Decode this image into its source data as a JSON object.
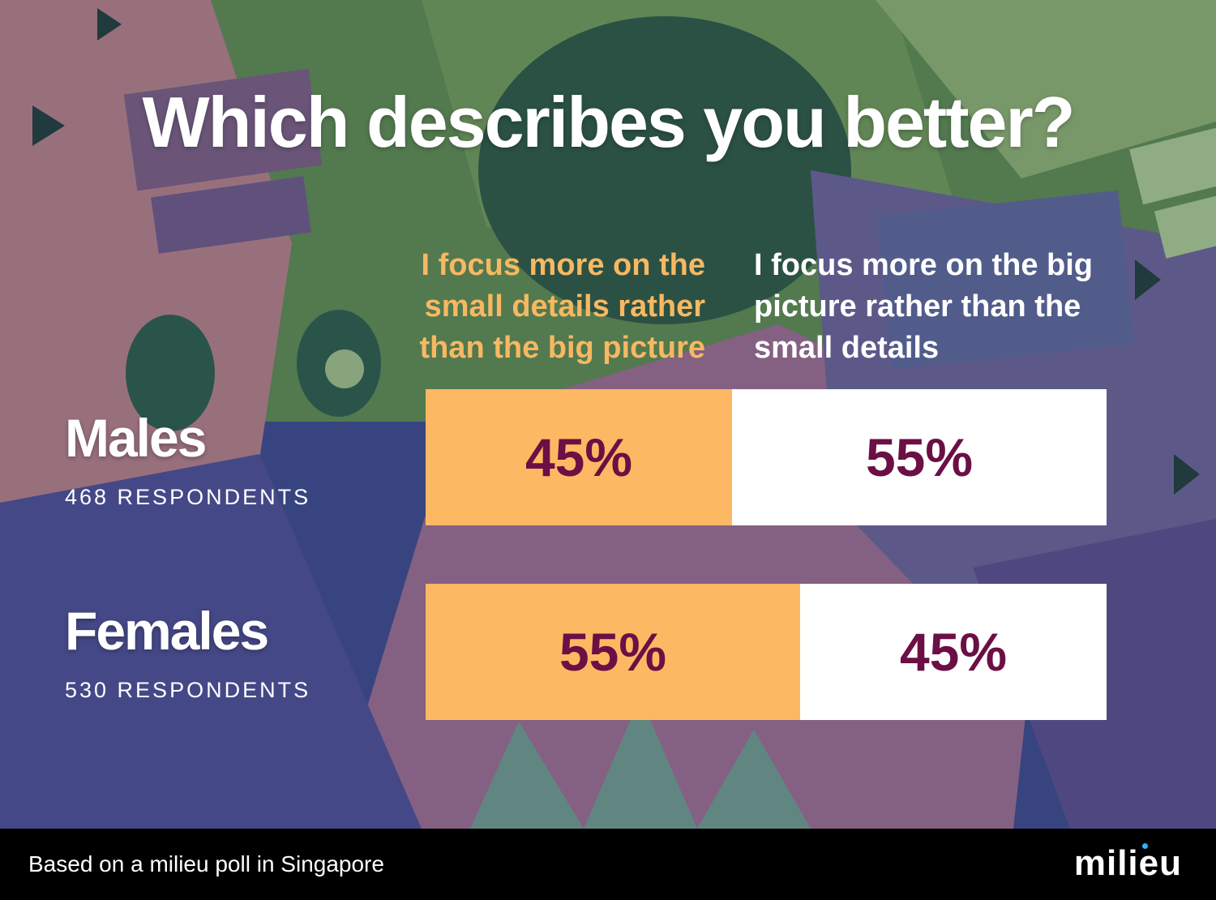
{
  "colors": {
    "accent_orange": "#fdb863",
    "value_text": "#6b0f45",
    "background_blue": "#3d4a86"
  },
  "title": "Which describes you better?",
  "columns": {
    "left": [
      "I focus more on the",
      "small details rather",
      "than the big picture"
    ],
    "right": [
      "I focus more on the big",
      "picture rather than the",
      "small details"
    ]
  },
  "chart_data": {
    "type": "bar",
    "stacked": true,
    "orientation": "horizontal",
    "title": "Which describes you better?",
    "categories": [
      "Males",
      "Females"
    ],
    "category_sublabels": [
      "468 RESPONDENTS",
      "530 RESPONDENTS"
    ],
    "series": [
      {
        "name": "I focus more on the small details rather than the big picture",
        "values": [
          45,
          55
        ],
        "labels": [
          "45%",
          "55%"
        ],
        "color": "#fdb863"
      },
      {
        "name": "I focus more on the big picture rather than the small details",
        "values": [
          55,
          45
        ],
        "labels": [
          "55%",
          "45%"
        ],
        "color": "#ffffff"
      }
    ],
    "xlim": [
      0,
      100
    ]
  },
  "footer": {
    "note": "Based on a milieu poll in Singapore",
    "brand": "milieu"
  }
}
